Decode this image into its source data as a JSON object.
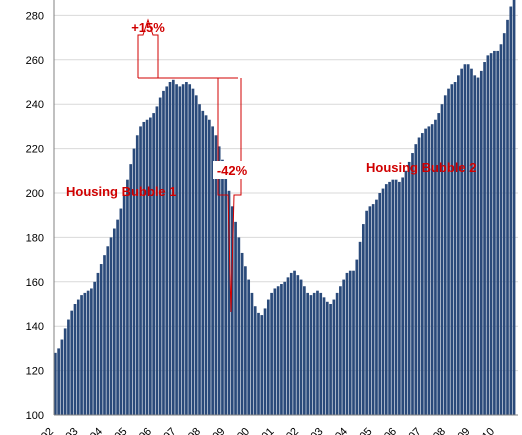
{
  "chart_data": {
    "type": "bar",
    "title": "",
    "xlabel": "",
    "ylabel": "",
    "ylim": [
      100,
      290
    ],
    "yticks": [
      100,
      120,
      140,
      160,
      180,
      200,
      220,
      240,
      260,
      280
    ],
    "bar_color": "#2a4a7a",
    "annotation_color": "#d00000",
    "x_tick_labels": [
      "92",
      "93",
      "94",
      "95",
      "96",
      "97",
      "98",
      "99",
      "00",
      "01",
      "02",
      "03",
      "04",
      "05",
      "06",
      "07",
      "08",
      "09",
      "10"
    ],
    "values": [
      128,
      130,
      134,
      139,
      143,
      147,
      150,
      152,
      154,
      155,
      156,
      157,
      160,
      164,
      168,
      172,
      176,
      180,
      184,
      188,
      193,
      199,
      206,
      213,
      220,
      226,
      230,
      232,
      233,
      234,
      236,
      239,
      243,
      246,
      248,
      250,
      251,
      249,
      248,
      249,
      250,
      249,
      247,
      244,
      240,
      237,
      235,
      233,
      230,
      226,
      221,
      215,
      208,
      201,
      194,
      187,
      180,
      173,
      167,
      161,
      155,
      149,
      146,
      145,
      148,
      152,
      155,
      157,
      158,
      159,
      160,
      162,
      164,
      165,
      163,
      161,
      158,
      155,
      154,
      155,
      156,
      155,
      153,
      151,
      150,
      152,
      155,
      158,
      161,
      164,
      165,
      165,
      170,
      178,
      186,
      192,
      194,
      195,
      197,
      200,
      202,
      204,
      205,
      206,
      206,
      205,
      207,
      210,
      214,
      218,
      222,
      225,
      227,
      229,
      230,
      231,
      233,
      236,
      240,
      244,
      247,
      249,
      250,
      253,
      256,
      258,
      258,
      256,
      253,
      252,
      255,
      259,
      262,
      263,
      264,
      264,
      267,
      272,
      278,
      284,
      290
    ]
  },
  "annotations": {
    "up_label": "+15%",
    "down_label": "-42%",
    "bubble1_label": "Housing Bubble 1",
    "bubble2_label": "Housing Bubble 2"
  }
}
